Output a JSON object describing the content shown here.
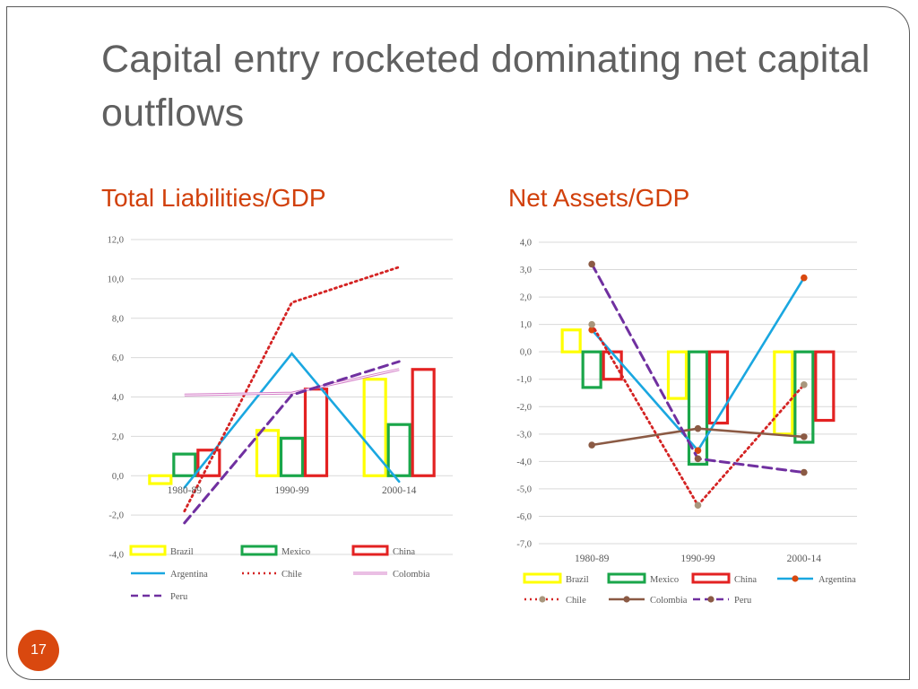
{
  "slide": {
    "title": "Capital entry rocketed dominating net capital outflows",
    "page_number": "17",
    "subtitle_left": "Total Liabilities/GDP",
    "subtitle_right": "Net Assets/GDP"
  },
  "chart_data": [
    {
      "type": "bar",
      "title": "Total Liabilities/GDP",
      "categories": [
        "1980-89",
        "1990-99",
        "2000-14"
      ],
      "ylim": [
        -4,
        12
      ],
      "yticks": [
        "12,0",
        "10,0",
        "8,0",
        "6,0",
        "4,0",
        "2,0",
        "0,0",
        "-2,0",
        "-4,0"
      ],
      "grid": true,
      "legend_position": "bottom",
      "bar_series": [
        {
          "name": "Brazil",
          "color": "#ffff00",
          "values": [
            -0.4,
            2.3,
            4.9
          ]
        },
        {
          "name": "Mexico",
          "color": "#1aa64a",
          "values": [
            1.1,
            1.9,
            2.6
          ]
        },
        {
          "name": "China",
          "color": "#e32222",
          "values": [
            1.3,
            4.4,
            5.4
          ]
        }
      ],
      "line_series": [
        {
          "name": "Argentina",
          "color": "#1aa7e0",
          "style": "solid",
          "values": [
            -0.6,
            6.2,
            -0.3
          ]
        },
        {
          "name": "Chile",
          "color": "#d42323",
          "style": "dotted",
          "values": [
            -1.8,
            8.8,
            10.6
          ]
        },
        {
          "name": "Colombia",
          "color": "#d47fc8",
          "style": "double",
          "values": [
            4.1,
            4.2,
            5.4
          ]
        },
        {
          "name": "Peru",
          "color": "#7030a0",
          "style": "dashed",
          "values": [
            -2.4,
            4.1,
            5.8
          ]
        }
      ]
    },
    {
      "type": "bar",
      "title": "Net Assets/GDP",
      "categories": [
        "1980-89",
        "1990-99",
        "2000-14"
      ],
      "ylim": [
        -7,
        4
      ],
      "yticks": [
        "4,0",
        "3,0",
        "2,0",
        "1,0",
        "0,0",
        "-1,0",
        "-2,0",
        "-3,0",
        "-4,0",
        "-5,0",
        "-6,0",
        "-7,0"
      ],
      "grid": true,
      "legend_position": "bottom",
      "bar_series": [
        {
          "name": "Brazil",
          "color": "#ffff00",
          "values": [
            0.8,
            -1.7,
            -3.0
          ]
        },
        {
          "name": "Mexico",
          "color": "#1aa64a",
          "values": [
            -1.3,
            -4.1,
            -3.3
          ]
        },
        {
          "name": "China",
          "color": "#e32222",
          "values": [
            -1.0,
            -2.6,
            -2.5
          ]
        }
      ],
      "line_series": [
        {
          "name": "Argentina",
          "color": "#1aa7e0",
          "style": "solid",
          "marker_color": "#d9480f",
          "values": [
            0.8,
            -3.6,
            2.7
          ]
        },
        {
          "name": "Chile",
          "color": "#d42323",
          "style": "dotted",
          "marker_color": "#a8967c",
          "values": [
            1.0,
            -5.6,
            -1.2
          ]
        },
        {
          "name": "Colombia",
          "color": "#8b5a44",
          "style": "solid",
          "marker_color": "#8b5a44",
          "values": [
            -3.4,
            -2.8,
            -3.1
          ]
        },
        {
          "name": "Peru",
          "color": "#7030a0",
          "style": "dashed",
          "marker_color": "#8b5a44",
          "values": [
            3.2,
            -3.9,
            -4.4
          ]
        }
      ]
    }
  ]
}
